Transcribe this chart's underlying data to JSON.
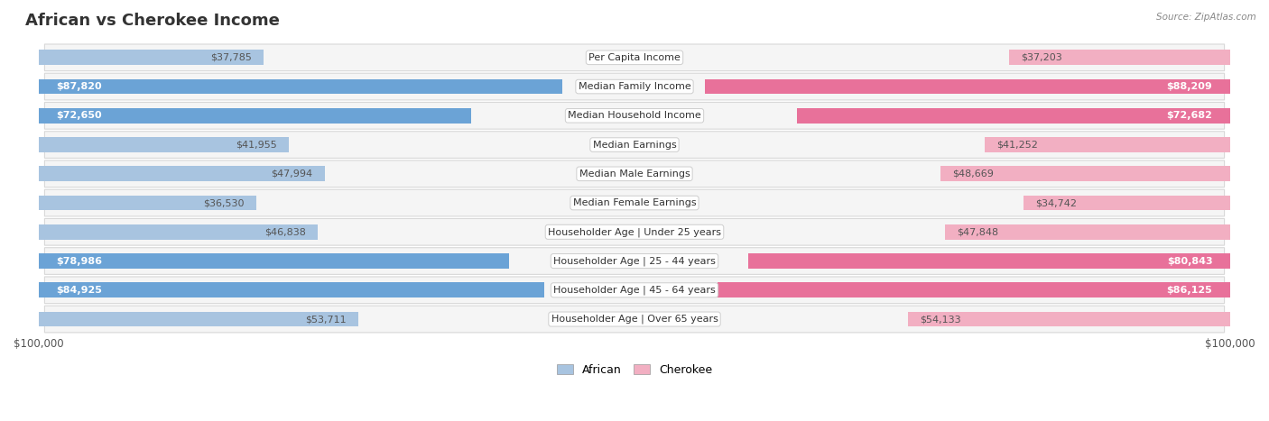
{
  "title": "African vs Cherokee Income",
  "source": "Source: ZipAtlas.com",
  "max_value": 100000,
  "categories": [
    "Per Capita Income",
    "Median Family Income",
    "Median Household Income",
    "Median Earnings",
    "Median Male Earnings",
    "Median Female Earnings",
    "Householder Age | Under 25 years",
    "Householder Age | 25 - 44 years",
    "Householder Age | 45 - 64 years",
    "Householder Age | Over 65 years"
  ],
  "african_values": [
    37785,
    87820,
    72650,
    41955,
    47994,
    36530,
    46838,
    78986,
    84925,
    53711
  ],
  "cherokee_values": [
    37203,
    88209,
    72682,
    41252,
    48669,
    34742,
    47848,
    80843,
    86125,
    54133
  ],
  "african_labels": [
    "$37,785",
    "$87,820",
    "$72,650",
    "$41,955",
    "$47,994",
    "$36,530",
    "$46,838",
    "$78,986",
    "$84,925",
    "$53,711"
  ],
  "cherokee_labels": [
    "$37,203",
    "$88,209",
    "$72,682",
    "$41,252",
    "$48,669",
    "$34,742",
    "$47,848",
    "$80,843",
    "$86,125",
    "$54,133"
  ],
  "african_color_light": "#a8c4e0",
  "african_color_dark": "#6ba3d6",
  "cherokee_color_light": "#f2afc2",
  "cherokee_color_dark": "#e8719a",
  "row_bg_color": "#f5f5f5",
  "row_border_color": "#d8d8d8",
  "inside_label_threshold": 60000,
  "title_fontsize": 13,
  "label_fontsize": 8,
  "category_fontsize": 8,
  "axis_label_fontsize": 8.5,
  "legend_fontsize": 9
}
